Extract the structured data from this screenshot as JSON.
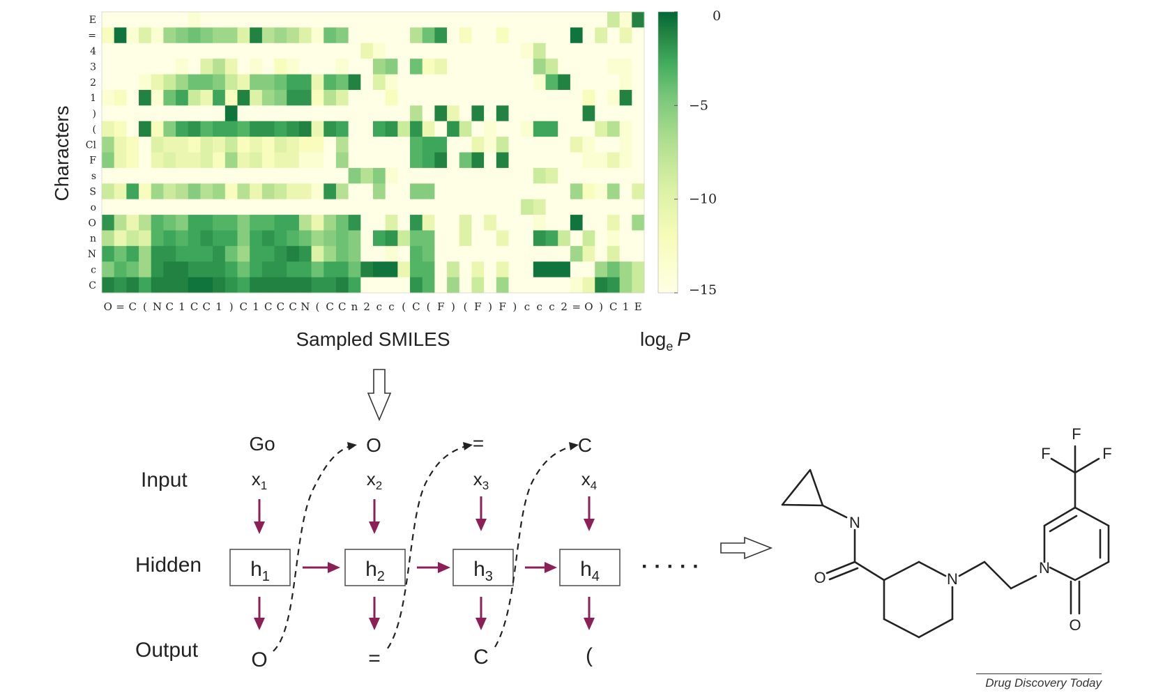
{
  "chart_data": {
    "type": "heatmap",
    "xlabel": "Sampled SMILES",
    "ylabel": "Characters",
    "colorbar_label_main": "log",
    "colorbar_label_sub": "e",
    "colorbar_label_var": "P",
    "colorbar_range": [
      -15,
      0
    ],
    "colorbar_ticks": [
      "0",
      "−5",
      "−10",
      "−15"
    ],
    "colorbar_tick_values": [
      0,
      -5,
      -10,
      -15
    ],
    "colormap": [
      "#ffffe5",
      "#f7fcb9",
      "#d9f0a3",
      "#addd8e",
      "#78c679",
      "#41ab5d",
      "#238443",
      "#006837"
    ],
    "y_labels": [
      "E",
      "=",
      "4",
      "3",
      "2",
      "1",
      ")",
      "(",
      "Cl",
      "F",
      "s",
      "S",
      "o",
      "O",
      "n",
      "N",
      "c",
      "C"
    ],
    "x_labels": [
      "O",
      "=",
      "C",
      "(",
      "N",
      "C",
      "1",
      "C",
      "C",
      "1",
      ")",
      "C",
      "1",
      "C",
      "C",
      "C",
      "N",
      "(",
      "C",
      "C",
      "n",
      "2",
      "c",
      "c",
      "(",
      "C",
      "(",
      "F",
      ")",
      "(",
      "F",
      ")",
      "F",
      ")",
      "c",
      "c",
      "c",
      "2",
      "=",
      "O",
      ")",
      "C",
      "1",
      "E"
    ],
    "values": [
      [
        -15,
        -15,
        -15,
        -15,
        -15,
        -15,
        -15,
        -14,
        -15,
        -15,
        -15,
        -15,
        -15,
        -15,
        -15,
        -15,
        -15,
        -15,
        -15,
        -15,
        -15,
        -15,
        -15,
        -15,
        -15,
        -15,
        -15,
        -15,
        -15,
        -15,
        -15,
        -15,
        -15,
        -15,
        -15,
        -15,
        -15,
        -15,
        -15,
        -15,
        -15,
        -10,
        -14,
        -2
      ],
      [
        -13,
        -1,
        -14,
        -11,
        -14,
        -8,
        -7,
        -6,
        -7,
        -8,
        -8,
        -11,
        -2,
        -9,
        -8,
        -9,
        -11,
        -14,
        -6,
        -7,
        -15,
        -15,
        -15,
        -15,
        -15,
        -9,
        -6,
        -3,
        -15,
        -13,
        -15,
        -15,
        -13,
        -15,
        -15,
        -15,
        -15,
        -15,
        -1,
        -15,
        -11,
        -15,
        -12,
        -15
      ],
      [
        -15,
        -15,
        -15,
        -15,
        -15,
        -15,
        -15,
        -15,
        -15,
        -15,
        -15,
        -15,
        -15,
        -15,
        -15,
        -15,
        -15,
        -15,
        -15,
        -15,
        -15,
        -12,
        -14,
        -15,
        -15,
        -15,
        -15,
        -15,
        -15,
        -15,
        -15,
        -15,
        -15,
        -15,
        -14,
        -10,
        -15,
        -15,
        -15,
        -15,
        -15,
        -15,
        -15,
        -15
      ],
      [
        -15,
        -15,
        -15,
        -15,
        -15,
        -15,
        -14,
        -15,
        -11,
        -9,
        -12,
        -15,
        -14,
        -15,
        -13,
        -14,
        -15,
        -15,
        -15,
        -14,
        -15,
        -15,
        -8,
        -7,
        -15,
        -6,
        -13,
        -12,
        -15,
        -15,
        -15,
        -15,
        -15,
        -15,
        -15,
        -8,
        -10,
        -15,
        -15,
        -15,
        -15,
        -14,
        -14,
        -15
      ],
      [
        -15,
        -15,
        -15,
        -14,
        -12,
        -10,
        -8,
        -6,
        -6,
        -7,
        -10,
        -12,
        -7,
        -7,
        -6,
        -4,
        -4,
        -12,
        -5,
        -6,
        -2,
        -15,
        -11,
        -14,
        -15,
        -15,
        -15,
        -15,
        -15,
        -15,
        -15,
        -15,
        -15,
        -15,
        -15,
        -14,
        -5,
        -2,
        -15,
        -15,
        -15,
        -15,
        -14,
        -15
      ],
      [
        -14,
        -13,
        -15,
        -2,
        -14,
        -6,
        -4,
        -10,
        -12,
        -4,
        -13,
        -2,
        -11,
        -8,
        -7,
        -3,
        -3,
        -13,
        -9,
        -11,
        -15,
        -15,
        -15,
        -13,
        -15,
        -15,
        -15,
        -15,
        -15,
        -15,
        -15,
        -15,
        -15,
        -15,
        -15,
        -15,
        -15,
        -15,
        -15,
        -13,
        -15,
        -14,
        -2,
        -15
      ],
      [
        -15,
        -15,
        -15,
        -15,
        -15,
        -15,
        -15,
        -15,
        -15,
        -15,
        -1,
        -15,
        -15,
        -15,
        -15,
        -15,
        -15,
        -15,
        -15,
        -15,
        -15,
        -15,
        -15,
        -15,
        -15,
        -9,
        -15,
        -2,
        -12,
        -15,
        -2,
        -15,
        -2,
        -15,
        -15,
        -15,
        -15,
        -15,
        -15,
        -2,
        -15,
        -15,
        -15,
        -15
      ],
      [
        -12,
        -13,
        -15,
        -2,
        -13,
        -7,
        -4,
        -3,
        -5,
        -4,
        -4,
        -5,
        -3,
        -3,
        -4,
        -3,
        -2,
        -12,
        -3,
        -4,
        -15,
        -15,
        -4,
        -3,
        -10,
        -3,
        -12,
        -15,
        -3,
        -10,
        -15,
        -14,
        -15,
        -15,
        -14,
        -4,
        -4,
        -15,
        -15,
        -15,
        -11,
        -9,
        -14,
        -15
      ],
      [
        -8,
        -12,
        -13,
        -15,
        -11,
        -12,
        -12,
        -13,
        -11,
        -12,
        -10,
        -13,
        -12,
        -13,
        -11,
        -12,
        -13,
        -13,
        -15,
        -9,
        -15,
        -15,
        -15,
        -15,
        -15,
        -5,
        -4,
        -4,
        -15,
        -15,
        -12,
        -14,
        -10,
        -15,
        -15,
        -15,
        -15,
        -15,
        -12,
        -14,
        -15,
        -15,
        -14,
        -15
      ],
      [
        -7,
        -12,
        -13,
        -15,
        -12,
        -11,
        -12,
        -12,
        -11,
        -13,
        -8,
        -12,
        -11,
        -13,
        -12,
        -12,
        -14,
        -14,
        -15,
        -8,
        -15,
        -15,
        -15,
        -15,
        -15,
        -5,
        -4,
        -2,
        -15,
        -6,
        -2,
        -15,
        -2,
        -15,
        -15,
        -15,
        -15,
        -15,
        -15,
        -14,
        -14,
        -12,
        -14,
        -15
      ],
      [
        -15,
        -15,
        -15,
        -15,
        -15,
        -15,
        -15,
        -15,
        -15,
        -15,
        -15,
        -15,
        -15,
        -15,
        -15,
        -15,
        -15,
        -15,
        -15,
        -15,
        -7,
        -9,
        -7,
        -14,
        -15,
        -15,
        -15,
        -15,
        -15,
        -15,
        -15,
        -15,
        -15,
        -15,
        -15,
        -10,
        -11,
        -15,
        -15,
        -15,
        -15,
        -15,
        -15,
        -15
      ],
      [
        -10,
        -12,
        -4,
        -13,
        -8,
        -10,
        -9,
        -7,
        -9,
        -8,
        -13,
        -9,
        -12,
        -9,
        -10,
        -12,
        -12,
        -14,
        -3,
        -9,
        -15,
        -15,
        -8,
        -15,
        -15,
        -7,
        -7,
        -15,
        -15,
        -15,
        -15,
        -15,
        -15,
        -15,
        -15,
        -15,
        -15,
        -15,
        -8,
        -13,
        -14,
        -8,
        -15,
        -11
      ],
      [
        -15,
        -15,
        -15,
        -15,
        -15,
        -15,
        -15,
        -15,
        -15,
        -15,
        -15,
        -15,
        -15,
        -15,
        -15,
        -15,
        -15,
        -15,
        -15,
        -15,
        -15,
        -15,
        -15,
        -15,
        -15,
        -15,
        -15,
        -15,
        -15,
        -15,
        -15,
        -15,
        -15,
        -15,
        -10,
        -11,
        -15,
        -15,
        -15,
        -15,
        -15,
        -15,
        -15,
        -15
      ],
      [
        -3,
        -9,
        -12,
        -9,
        -5,
        -6,
        -7,
        -4,
        -4,
        -5,
        -5,
        -7,
        -5,
        -5,
        -4,
        -4,
        -9,
        -12,
        -8,
        -6,
        -3,
        -15,
        -15,
        -11,
        -15,
        -3,
        -12,
        -15,
        -15,
        -11,
        -15,
        -12,
        -15,
        -15,
        -15,
        -14,
        -15,
        -15,
        -1,
        -15,
        -15,
        -12,
        -15,
        -8
      ],
      [
        -9,
        -12,
        -10,
        -11,
        -5,
        -4,
        -5,
        -4,
        -3,
        -4,
        -4,
        -7,
        -4,
        -3,
        -4,
        -5,
        -6,
        -8,
        -7,
        -6,
        -7,
        -15,
        -4,
        -3,
        -10,
        -6,
        -6,
        -15,
        -15,
        -11,
        -15,
        -15,
        -12,
        -15,
        -15,
        -3,
        -4,
        -10,
        -15,
        -10,
        -15,
        -14,
        -15,
        -15
      ],
      [
        -4,
        -6,
        -4,
        -8,
        -3,
        -3,
        -4,
        -4,
        -4,
        -3,
        -6,
        -8,
        -4,
        -4,
        -3,
        -2,
        -3,
        -11,
        -8,
        -6,
        -7,
        -15,
        -15,
        -14,
        -15,
        -5,
        -6,
        -15,
        -15,
        -15,
        -15,
        -15,
        -15,
        -15,
        -15,
        -15,
        -15,
        -15,
        -8,
        -12,
        -15,
        -11,
        -15,
        -15
      ],
      [
        -7,
        -5,
        -6,
        -8,
        -3,
        -2,
        -2,
        -3,
        -3,
        -3,
        -4,
        -6,
        -4,
        -3,
        -3,
        -4,
        -4,
        -6,
        -4,
        -4,
        -6,
        -2,
        -1,
        -1,
        -12,
        -5,
        -5,
        -15,
        -10,
        -15,
        -12,
        -15,
        -12,
        -15,
        -15,
        -1,
        -1,
        -1,
        -15,
        -15,
        -8,
        -6,
        -8,
        -10
      ],
      [
        -2,
        -3,
        -2,
        -4,
        -2,
        -2,
        -2,
        -1,
        -1,
        -2,
        -3,
        -4,
        -2,
        -2,
        -2,
        -2,
        -2,
        -3,
        -3,
        -2,
        -4,
        -15,
        -15,
        -15,
        -15,
        -3,
        -5,
        -15,
        -8,
        -15,
        -10,
        -15,
        -8,
        -15,
        -15,
        -15,
        -15,
        -15,
        -14,
        -12,
        -2,
        -3,
        -8,
        -10
      ]
    ]
  },
  "rnn": {
    "row_labels": {
      "input": "Input",
      "hidden": "Hidden",
      "output": "Output"
    },
    "tokens_top": [
      "Go",
      "O",
      "=",
      "C"
    ],
    "inputs": [
      {
        "base": "x",
        "sub": "1"
      },
      {
        "base": "x",
        "sub": "2"
      },
      {
        "base": "x",
        "sub": "3"
      },
      {
        "base": "x",
        "sub": "4"
      }
    ],
    "hidden": [
      {
        "base": "h",
        "sub": "1"
      },
      {
        "base": "h",
        "sub": "2"
      },
      {
        "base": "h",
        "sub": "3"
      },
      {
        "base": "h",
        "sub": "4"
      }
    ],
    "outputs": [
      "O",
      "=",
      "C",
      "("
    ],
    "ellipsis": "· · · · ·",
    "arrow_color": "#8b1f56"
  },
  "molecule": {
    "atom_labels": [
      "N",
      "O",
      "N",
      "N",
      "O",
      "F",
      "F",
      "F"
    ]
  },
  "credit": "Drug Discovery Today"
}
